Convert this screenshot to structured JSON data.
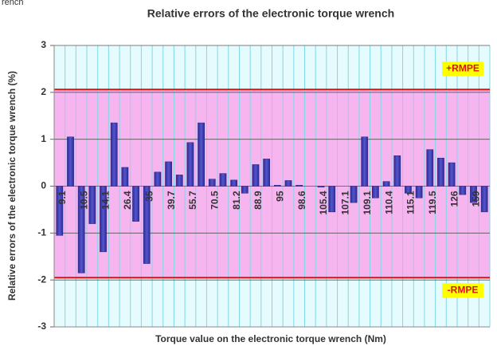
{
  "chart_data": {
    "type": "bar",
    "caption_fragment": "rench",
    "title": "Relative errors of the electronic torque wrench",
    "y_label": "Relative errors of the electronic torque wrench (%)",
    "x_label": "Torque value on the electronic torque wrench (Nm)",
    "categories": [
      "9.1",
      null,
      "10.5",
      null,
      "14.1",
      null,
      "26.4",
      null,
      "35",
      null,
      "39.7",
      null,
      "55.7",
      null,
      "70.5",
      null,
      "81.2",
      null,
      "88.9",
      null,
      "95",
      null,
      "98.6",
      null,
      "105.4",
      null,
      "107.1",
      null,
      "109.1",
      null,
      "110.4",
      null,
      "115.1",
      null,
      "119.5",
      null,
      "126",
      null,
      "159",
      null
    ],
    "values": [
      -1.05,
      1.05,
      -1.85,
      -0.8,
      -1.4,
      1.35,
      0.4,
      -0.75,
      -1.65,
      0.3,
      0.52,
      0.24,
      0.93,
      1.35,
      0.15,
      0.27,
      0.13,
      -0.15,
      0.46,
      0.58,
      0.02,
      0.12,
      0.02,
      0.0,
      -0.02,
      -0.55,
      0.0,
      -0.35,
      1.05,
      -0.25,
      0.1,
      0.65,
      -0.15,
      -0.25,
      0.78,
      0.6,
      0.5,
      -0.18,
      -0.35,
      -0.55
    ],
    "color": "#5555cc",
    "ylim": [
      -3,
      3
    ],
    "yticks": [
      -3,
      -2,
      -1,
      0,
      1,
      2,
      3
    ],
    "grid": true,
    "limits": [
      {
        "value": 2.06,
        "label": "+RMPE"
      },
      {
        "value": -1.95,
        "label": "-RMPE"
      }
    ],
    "limit_color": "#e01010",
    "band_color": "#f7b5f0",
    "plot_color": "#e6fbfd"
  }
}
